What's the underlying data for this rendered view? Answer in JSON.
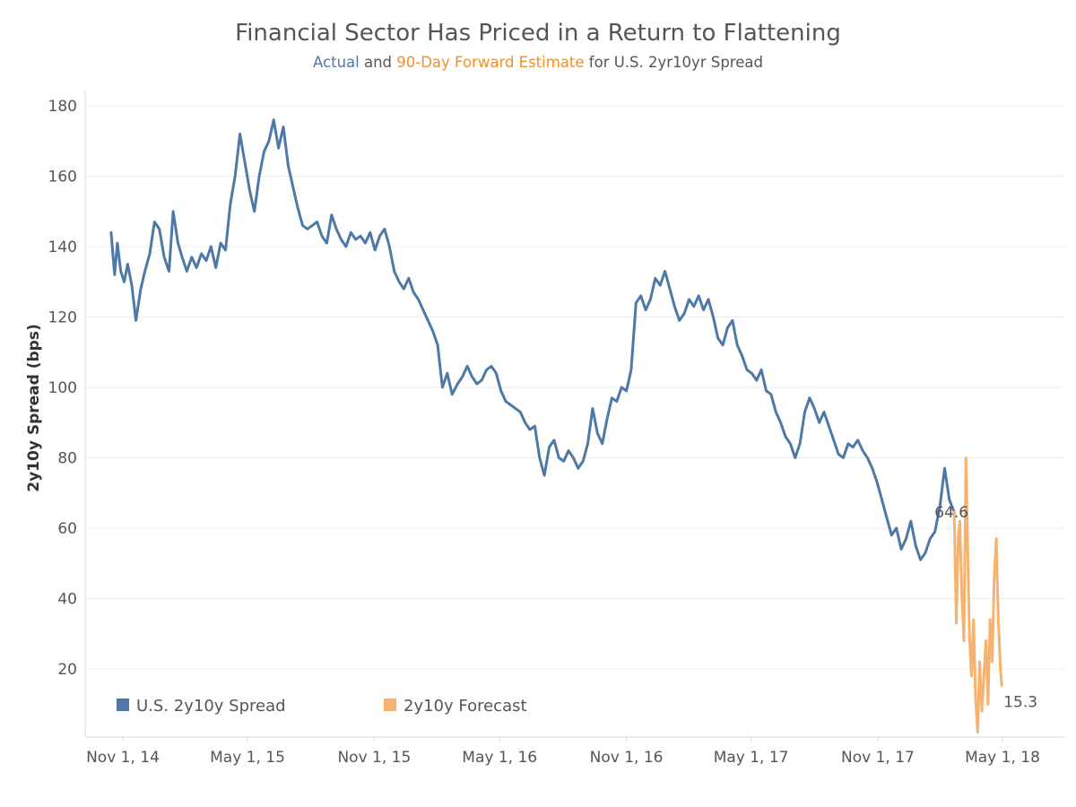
{
  "chart_data": {
    "type": "line",
    "title": "Financial Sector Has Priced in a Return to Flattening",
    "subtitle": {
      "part1": "Actual",
      "part2": " and ",
      "part3": "90-Day Forward Estimate",
      "part4": " for U.S. 2yr10yr Spread"
    },
    "xlabel": "",
    "ylabel": "2y10y Spread (bps)",
    "ylim": [
      0,
      180
    ],
    "yticks": [
      20,
      40,
      60,
      80,
      100,
      120,
      140,
      160,
      180
    ],
    "xlim": [
      "2014-10-01",
      "2018-06-01"
    ],
    "xticks": [
      {
        "date": "2014-11-01",
        "label": "Nov 1, 14"
      },
      {
        "date": "2015-05-01",
        "label": "May 1, 15"
      },
      {
        "date": "2015-11-01",
        "label": "Nov 1, 15"
      },
      {
        "date": "2016-05-01",
        "label": "May 1, 16"
      },
      {
        "date": "2016-11-01",
        "label": "Nov 1, 16"
      },
      {
        "date": "2017-05-01",
        "label": "May 1, 17"
      },
      {
        "date": "2017-11-01",
        "label": "Nov 1, 17"
      },
      {
        "date": "2018-05-01",
        "label": "May 1, 18"
      }
    ],
    "grid": true,
    "legend_position": "bottom-left",
    "series": [
      {
        "name": "U.S. 2y10y Spread",
        "color": "#4e79a7",
        "end_label": "64.6",
        "points": [
          [
            "2014-10-15",
            144
          ],
          [
            "2014-10-20",
            132
          ],
          [
            "2014-10-24",
            141
          ],
          [
            "2014-10-29",
            133
          ],
          [
            "2014-11-03",
            130
          ],
          [
            "2014-11-08",
            135
          ],
          [
            "2014-11-14",
            129
          ],
          [
            "2014-11-20",
            119
          ],
          [
            "2014-11-27",
            128
          ],
          [
            "2014-12-03",
            133
          ],
          [
            "2014-12-10",
            138
          ],
          [
            "2014-12-17",
            147
          ],
          [
            "2014-12-24",
            145
          ],
          [
            "2014-12-31",
            137
          ],
          [
            "2015-01-07",
            133
          ],
          [
            "2015-01-13",
            150
          ],
          [
            "2015-01-20",
            141
          ],
          [
            "2015-01-26",
            137
          ],
          [
            "2015-02-02",
            133
          ],
          [
            "2015-02-09",
            137
          ],
          [
            "2015-02-16",
            134
          ],
          [
            "2015-02-23",
            138
          ],
          [
            "2015-03-02",
            136
          ],
          [
            "2015-03-09",
            140
          ],
          [
            "2015-03-16",
            134
          ],
          [
            "2015-03-23",
            141
          ],
          [
            "2015-03-30",
            139
          ],
          [
            "2015-04-06",
            152
          ],
          [
            "2015-04-13",
            160
          ],
          [
            "2015-04-20",
            172
          ],
          [
            "2015-04-27",
            164
          ],
          [
            "2015-05-04",
            156
          ],
          [
            "2015-05-11",
            150
          ],
          [
            "2015-05-18",
            160
          ],
          [
            "2015-05-25",
            167
          ],
          [
            "2015-06-01",
            170
          ],
          [
            "2015-06-08",
            176
          ],
          [
            "2015-06-15",
            168
          ],
          [
            "2015-06-22",
            174
          ],
          [
            "2015-06-29",
            163
          ],
          [
            "2015-07-06",
            157
          ],
          [
            "2015-07-13",
            151
          ],
          [
            "2015-07-20",
            146
          ],
          [
            "2015-07-27",
            145
          ],
          [
            "2015-08-03",
            146
          ],
          [
            "2015-08-10",
            147
          ],
          [
            "2015-08-17",
            143
          ],
          [
            "2015-08-24",
            141
          ],
          [
            "2015-08-31",
            149
          ],
          [
            "2015-09-07",
            145
          ],
          [
            "2015-09-14",
            142
          ],
          [
            "2015-09-21",
            140
          ],
          [
            "2015-09-28",
            144
          ],
          [
            "2015-10-05",
            142
          ],
          [
            "2015-10-12",
            143
          ],
          [
            "2015-10-19",
            141
          ],
          [
            "2015-10-26",
            144
          ],
          [
            "2015-11-02",
            139
          ],
          [
            "2015-11-09",
            143
          ],
          [
            "2015-11-16",
            145
          ],
          [
            "2015-11-23",
            140
          ],
          [
            "2015-11-30",
            133
          ],
          [
            "2015-12-07",
            130
          ],
          [
            "2015-12-14",
            128
          ],
          [
            "2015-12-21",
            131
          ],
          [
            "2015-12-28",
            127
          ],
          [
            "2016-01-04",
            125
          ],
          [
            "2016-01-11",
            122
          ],
          [
            "2016-01-18",
            119
          ],
          [
            "2016-01-25",
            116
          ],
          [
            "2016-02-01",
            112
          ],
          [
            "2016-02-08",
            100
          ],
          [
            "2016-02-15",
            104
          ],
          [
            "2016-02-22",
            98
          ],
          [
            "2016-03-01",
            101
          ],
          [
            "2016-03-08",
            103
          ],
          [
            "2016-03-15",
            106
          ],
          [
            "2016-03-22",
            103
          ],
          [
            "2016-03-29",
            101
          ],
          [
            "2016-04-05",
            102
          ],
          [
            "2016-04-12",
            105
          ],
          [
            "2016-04-19",
            106
          ],
          [
            "2016-04-26",
            104
          ],
          [
            "2016-05-03",
            99
          ],
          [
            "2016-05-10",
            96
          ],
          [
            "2016-05-17",
            95
          ],
          [
            "2016-05-24",
            94
          ],
          [
            "2016-05-31",
            93
          ],
          [
            "2016-06-07",
            90
          ],
          [
            "2016-06-14",
            88
          ],
          [
            "2016-06-21",
            89
          ],
          [
            "2016-06-28",
            80
          ],
          [
            "2016-07-05",
            75
          ],
          [
            "2016-07-12",
            83
          ],
          [
            "2016-07-19",
            85
          ],
          [
            "2016-07-26",
            80
          ],
          [
            "2016-08-02",
            79
          ],
          [
            "2016-08-09",
            82
          ],
          [
            "2016-08-16",
            80
          ],
          [
            "2016-08-23",
            77
          ],
          [
            "2016-08-30",
            79
          ],
          [
            "2016-09-06",
            84
          ],
          [
            "2016-09-13",
            94
          ],
          [
            "2016-09-20",
            87
          ],
          [
            "2016-09-27",
            84
          ],
          [
            "2016-10-04",
            91
          ],
          [
            "2016-10-11",
            97
          ],
          [
            "2016-10-18",
            96
          ],
          [
            "2016-10-25",
            100
          ],
          [
            "2016-11-01",
            99
          ],
          [
            "2016-11-08",
            105
          ],
          [
            "2016-11-15",
            124
          ],
          [
            "2016-11-22",
            126
          ],
          [
            "2016-11-29",
            122
          ],
          [
            "2016-12-06",
            125
          ],
          [
            "2016-12-13",
            131
          ],
          [
            "2016-12-20",
            129
          ],
          [
            "2016-12-27",
            133
          ],
          [
            "2017-01-03",
            128
          ],
          [
            "2017-01-10",
            123
          ],
          [
            "2017-01-17",
            119
          ],
          [
            "2017-01-24",
            121
          ],
          [
            "2017-01-31",
            125
          ],
          [
            "2017-02-07",
            123
          ],
          [
            "2017-02-14",
            126
          ],
          [
            "2017-02-21",
            122
          ],
          [
            "2017-02-28",
            125
          ],
          [
            "2017-03-07",
            120
          ],
          [
            "2017-03-14",
            114
          ],
          [
            "2017-03-21",
            112
          ],
          [
            "2017-03-28",
            117
          ],
          [
            "2017-04-04",
            119
          ],
          [
            "2017-04-11",
            112
          ],
          [
            "2017-04-18",
            109
          ],
          [
            "2017-04-25",
            105
          ],
          [
            "2017-05-02",
            104
          ],
          [
            "2017-05-09",
            102
          ],
          [
            "2017-05-16",
            105
          ],
          [
            "2017-05-23",
            99
          ],
          [
            "2017-05-30",
            98
          ],
          [
            "2017-06-06",
            93
          ],
          [
            "2017-06-13",
            90
          ],
          [
            "2017-06-20",
            86
          ],
          [
            "2017-06-27",
            84
          ],
          [
            "2017-07-04",
            80
          ],
          [
            "2017-07-11",
            84
          ],
          [
            "2017-07-18",
            93
          ],
          [
            "2017-07-25",
            97
          ],
          [
            "2017-08-01",
            94
          ],
          [
            "2017-08-08",
            90
          ],
          [
            "2017-08-15",
            93
          ],
          [
            "2017-08-22",
            89
          ],
          [
            "2017-08-29",
            85
          ],
          [
            "2017-09-05",
            81
          ],
          [
            "2017-09-12",
            80
          ],
          [
            "2017-09-19",
            84
          ],
          [
            "2017-09-26",
            83
          ],
          [
            "2017-10-03",
            85
          ],
          [
            "2017-10-10",
            82
          ],
          [
            "2017-10-17",
            80
          ],
          [
            "2017-10-24",
            77
          ],
          [
            "2017-10-31",
            73
          ],
          [
            "2017-11-07",
            68
          ],
          [
            "2017-11-14",
            63
          ],
          [
            "2017-11-21",
            58
          ],
          [
            "2017-11-28",
            60
          ],
          [
            "2017-12-05",
            54
          ],
          [
            "2017-12-12",
            57
          ],
          [
            "2017-12-19",
            62
          ],
          [
            "2017-12-26",
            55
          ],
          [
            "2018-01-02",
            51
          ],
          [
            "2018-01-09",
            53
          ],
          [
            "2018-01-16",
            57
          ],
          [
            "2018-01-23",
            59
          ],
          [
            "2018-01-30",
            66
          ],
          [
            "2018-02-06",
            77
          ],
          [
            "2018-02-13",
            68
          ],
          [
            "2018-02-20",
            64.6
          ]
        ]
      },
      {
        "name": "2y10y Forecast",
        "color": "#f7b26f",
        "end_label": "15.3",
        "points": [
          [
            "2018-02-20",
            64.6
          ],
          [
            "2018-02-23",
            33
          ],
          [
            "2018-02-26",
            58
          ],
          [
            "2018-02-28",
            62
          ],
          [
            "2018-03-03",
            41
          ],
          [
            "2018-03-06",
            28
          ],
          [
            "2018-03-09",
            80
          ],
          [
            "2018-03-11",
            60
          ],
          [
            "2018-03-14",
            30
          ],
          [
            "2018-03-17",
            18
          ],
          [
            "2018-03-20",
            34
          ],
          [
            "2018-03-23",
            12
          ],
          [
            "2018-03-26",
            2
          ],
          [
            "2018-03-29",
            22
          ],
          [
            "2018-04-01",
            8
          ],
          [
            "2018-04-04",
            18
          ],
          [
            "2018-04-07",
            28
          ],
          [
            "2018-04-10",
            10
          ],
          [
            "2018-04-13",
            34
          ],
          [
            "2018-04-16",
            22
          ],
          [
            "2018-04-19",
            46
          ],
          [
            "2018-04-22",
            57
          ],
          [
            "2018-04-25",
            34
          ],
          [
            "2018-04-28",
            20
          ],
          [
            "2018-04-30",
            15.3
          ]
        ]
      }
    ]
  }
}
